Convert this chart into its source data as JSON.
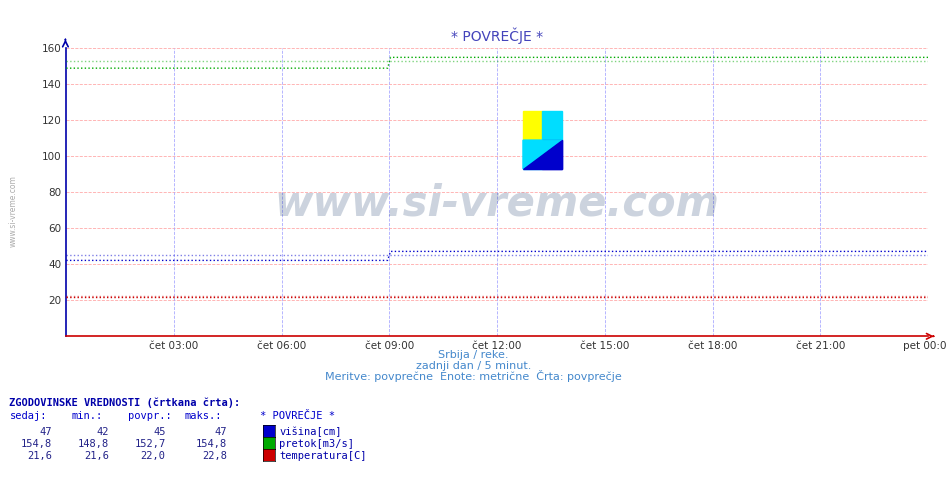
{
  "title": "* POVREČJE *",
  "bg_color": "#ffffff",
  "grid_h_color": "#ffaaaa",
  "grid_v_color": "#aaaaff",
  "border_color": "#0000aa",
  "ylim": [
    0,
    160
  ],
  "yticks": [
    20,
    40,
    60,
    80,
    100,
    120,
    140,
    160
  ],
  "title_color": "#4444bb",
  "xtick_labels": [
    "čet 03:00",
    "čet 06:00",
    "čet 09:00",
    "čet 12:00",
    "čet 15:00",
    "čet 18:00",
    "čet 21:00",
    "pet 00:00"
  ],
  "subtitle1": "Srbija / reke.",
  "subtitle2": "zadnji dan / 5 minut.",
  "subtitle3": "Meritve: povprečne  Enote: metrične  Črta: povprečje",
  "subtitle_color": "#4488cc",
  "watermark_text": "www.si-vreme.com",
  "watermark_color": "#1a3a6a",
  "watermark_alpha": 0.22,
  "sidebar_text": "www.si-vreme.com",
  "sidebar_color": "#888888",
  "line_blue_color": "#0000cc",
  "line_green_color": "#00aa00",
  "line_red_color": "#cc0000",
  "blue_before": 42.0,
  "blue_after": 47.0,
  "blue_hist_before": 45.0,
  "blue_hist_after": 45.0,
  "green_before": 148.8,
  "green_after": 154.8,
  "green_hist_before": 152.7,
  "green_hist_after": 152.7,
  "red_value": 21.6,
  "red_hist_value": 22.0,
  "legend_header": "ZGODOVINSKE VREDNOSTI (črtkana črta):",
  "legend_col1": "sedaj:",
  "legend_col2": "min.:",
  "legend_col3": "povpr.:",
  "legend_col4": "maks.:",
  "legend_col5": "* POVREČJE *",
  "row1_vals": [
    "47",
    "42",
    "45",
    "47"
  ],
  "row1_label": "višina[cm]",
  "row1_color": "#0000cc",
  "row2_vals": [
    "154,8",
    "148,8",
    "152,7",
    "154,8"
  ],
  "row2_label": "pretok[m3/s]",
  "row2_color": "#00aa00",
  "row3_vals": [
    "21,6",
    "21,6",
    "22,0",
    "22,8"
  ],
  "row3_label": "temperatura[C]",
  "row3_color": "#cc0000",
  "n_points": 288,
  "total_hours": 24,
  "jump_hour": 9
}
